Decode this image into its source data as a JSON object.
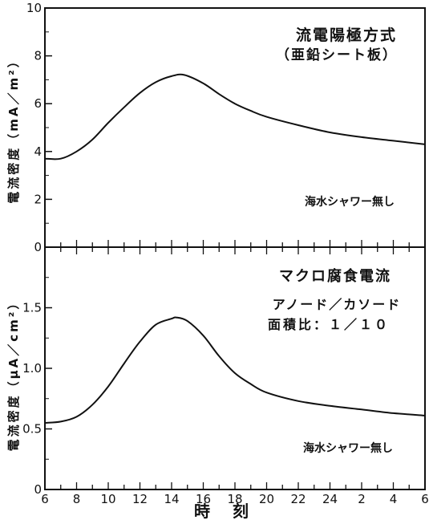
{
  "chart_data": [
    {
      "type": "line",
      "title": "流電陽極方式",
      "subtitle": "（亜鉛シート板）",
      "ylabel": "電流密度（mA／m²）",
      "ylim": [
        0,
        10
      ],
      "yticks": [
        "0",
        "2",
        "4",
        "6",
        "8",
        "10"
      ],
      "annotation": "海水シャワー無し",
      "series": [
        {
          "x": [
            6,
            7,
            8,
            9,
            10,
            11,
            12,
            13,
            14,
            14.8,
            16,
            17,
            18,
            19,
            20,
            22,
            24,
            26,
            28,
            30
          ],
          "values": [
            3.7,
            3.7,
            4.0,
            4.5,
            5.2,
            5.85,
            6.45,
            6.9,
            7.15,
            7.2,
            6.85,
            6.4,
            6.0,
            5.7,
            5.45,
            5.1,
            4.8,
            4.6,
            4.45,
            4.3
          ]
        }
      ]
    },
    {
      "type": "line",
      "title": "マクロ腐食電流",
      "subtitle": "アノード／カソード",
      "subtitle2": "面積比：１／１０",
      "ylabel": "電流密度（μA／cm²）",
      "xlabel": "時刻",
      "ylim": [
        0,
        2
      ],
      "yticks": [
        "0",
        "0.5",
        "1.0",
        "1.5"
      ],
      "xticks": [
        "6",
        "8",
        "10",
        "12",
        "14",
        "16",
        "18",
        "20",
        "22",
        "24",
        "2",
        "4",
        "6"
      ],
      "annotation": "海水シャワー無し",
      "series": [
        {
          "x": [
            6,
            7,
            8,
            9,
            10,
            11,
            12,
            13,
            14,
            14.3,
            15,
            16,
            17,
            18,
            19,
            20,
            22,
            24,
            26,
            28,
            30
          ],
          "values": [
            0.55,
            0.56,
            0.6,
            0.7,
            0.85,
            1.04,
            1.22,
            1.36,
            1.41,
            1.42,
            1.39,
            1.27,
            1.1,
            0.96,
            0.87,
            0.8,
            0.73,
            0.69,
            0.66,
            0.63,
            0.61
          ]
        }
      ]
    }
  ]
}
